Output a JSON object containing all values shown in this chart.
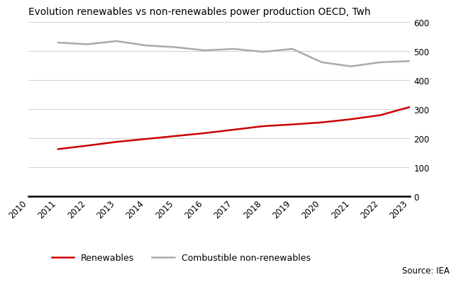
{
  "title": "Evolution renewables vs non-renewables power production OECD, Twh",
  "years": [
    2010,
    2011,
    2012,
    2013,
    2014,
    2015,
    2016,
    2017,
    2018,
    2019,
    2020,
    2021,
    2022,
    2023
  ],
  "renewables": [
    null,
    163,
    175,
    188,
    198,
    208,
    218,
    230,
    242,
    248,
    255,
    266,
    280,
    308
  ],
  "non_renewables": [
    null,
    530,
    524,
    535,
    520,
    514,
    503,
    508,
    498,
    508,
    462,
    448,
    462,
    466
  ],
  "renewables_color": "#cc0000",
  "non_renewables_color": "#aaaaaa",
  "ylim": [
    0,
    600
  ],
  "yticks": [
    0,
    100,
    200,
    300,
    400,
    500,
    600
  ],
  "source_text": "Source: IEA",
  "legend_renewables": "Renewables",
  "legend_non_renewables": "Combustible non-renewables",
  "background_color": "#ffffff",
  "grid_color": "#d0d0d0",
  "linewidth": 1.8
}
